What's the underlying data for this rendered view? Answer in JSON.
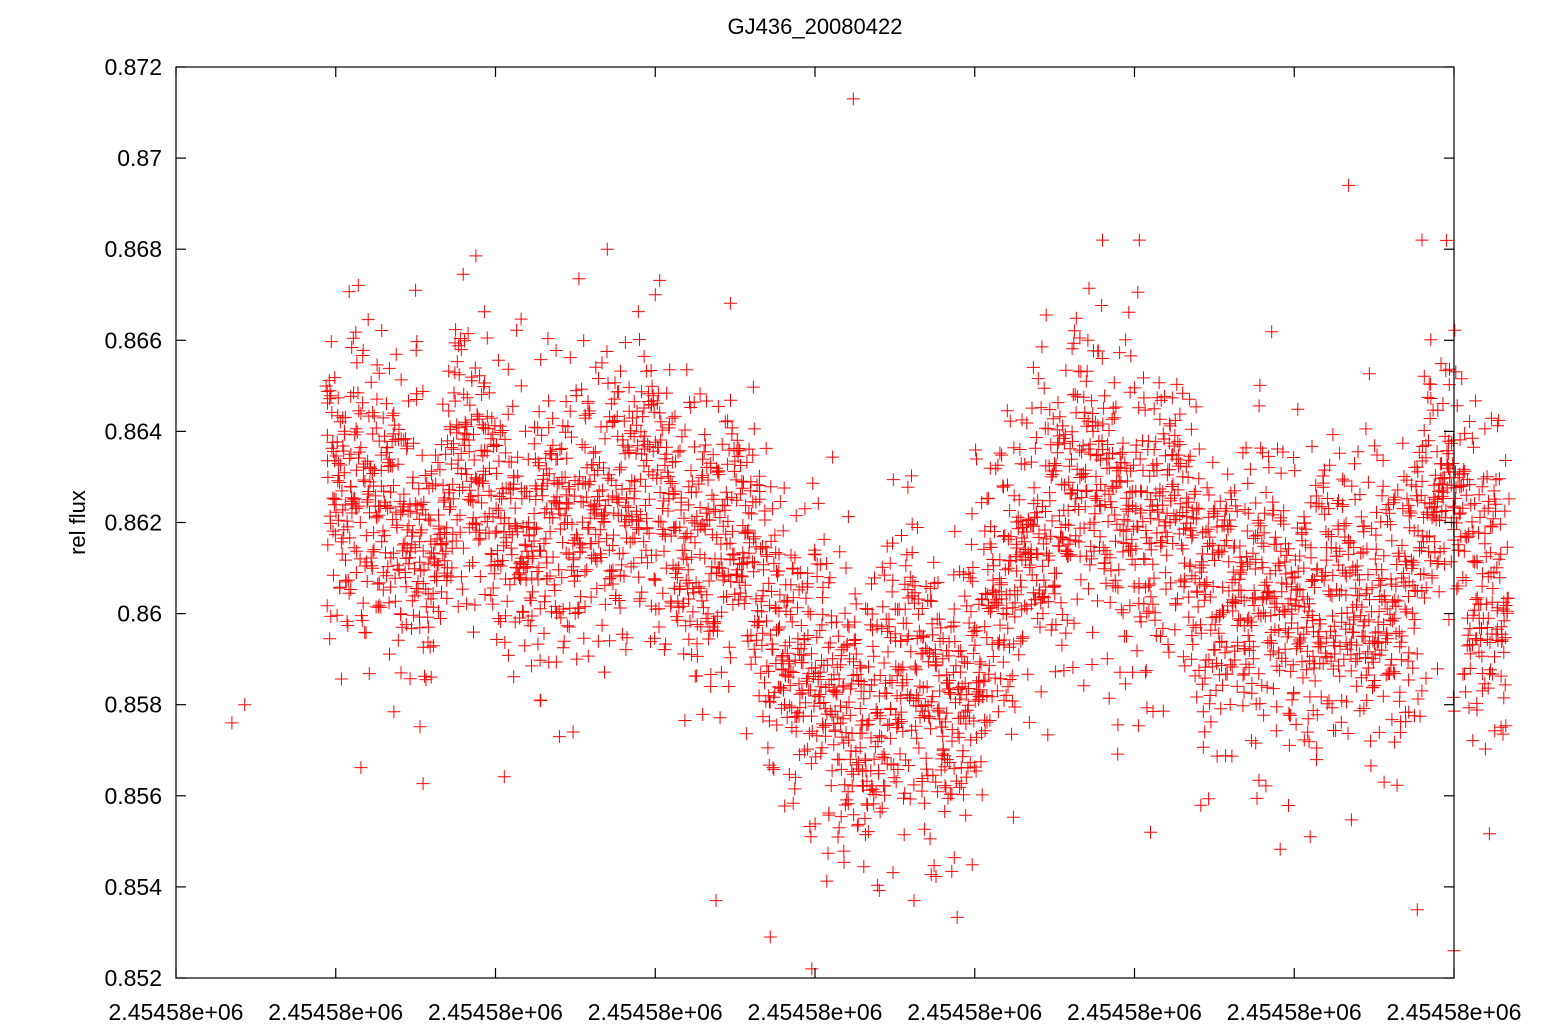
{
  "chart_data": {
    "type": "scatter",
    "title": "GJ436_20080422",
    "ylabel": "rel flux",
    "xlabel": "",
    "marker": "plus",
    "grid": false,
    "legend": "none",
    "series_color": "#ff0000",
    "xlim": [
      0,
      8
    ],
    "ylim": [
      0.852,
      0.872
    ],
    "x_tick_values": [
      0,
      1,
      2,
      3,
      4,
      5,
      6,
      7,
      8
    ],
    "x_tick_labels": [
      "2.45458e+06",
      "2.45458e+06",
      "2.45458e+06",
      "2.45458e+06",
      "2.45458e+06",
      "2.45458e+06",
      "2.45458e+06",
      "2.45458e+06",
      "2.45458e+06"
    ],
    "y_ticks": [
      0.852,
      0.854,
      0.856,
      0.858,
      0.86,
      0.862,
      0.864,
      0.866,
      0.868,
      0.87,
      0.872
    ],
    "y_tick_labels": [
      "0.852",
      "0.854",
      "0.856",
      "0.858",
      "0.86",
      "0.862",
      "0.864",
      "0.866",
      "0.868",
      "0.87",
      "0.872"
    ],
    "series": [
      {
        "trend_x": [
          0.94,
          1.5,
          2.0,
          2.5,
          3.0,
          3.2,
          3.4,
          3.6,
          3.8,
          4.0,
          4.2,
          4.4,
          4.6,
          4.8,
          5.0,
          5.2,
          5.4,
          5.6,
          5.8,
          6.0,
          6.2,
          6.4,
          6.6,
          6.8,
          7.0,
          7.2,
          7.4,
          7.6,
          7.8,
          8.0,
          8.2,
          8.34
        ],
        "trend_y": [
          0.8626,
          0.8624,
          0.8623,
          0.8622,
          0.8624,
          0.8623,
          0.8618,
          0.8608,
          0.8596,
          0.8585,
          0.8578,
          0.8576,
          0.858,
          0.8585,
          0.8592,
          0.8605,
          0.8618,
          0.8627,
          0.863,
          0.8624,
          0.8614,
          0.8608,
          0.8605,
          0.8604,
          0.8602,
          0.8601,
          0.8603,
          0.8608,
          0.8618,
          0.862,
          0.8608,
          0.861
        ],
        "scatter_std": 0.0017,
        "point_count": 3600,
        "outliers": [
          {
            "x": 4.24,
            "y": 0.8713
          },
          {
            "x": 2.7,
            "y": 0.868
          },
          {
            "x": 3.0,
            "y": 0.867
          },
          {
            "x": 1.5,
            "y": 0.8671
          },
          {
            "x": 5.8,
            "y": 0.8682
          },
          {
            "x": 6.03,
            "y": 0.8682
          },
          {
            "x": 7.34,
            "y": 0.8694
          },
          {
            "x": 7.8,
            "y": 0.8682
          },
          {
            "x": 3.72,
            "y": 0.8529
          },
          {
            "x": 3.98,
            "y": 0.8522
          },
          {
            "x": 8.0,
            "y": 0.8526
          },
          {
            "x": 7.77,
            "y": 0.8535
          },
          {
            "x": 0.35,
            "y": 0.8576
          },
          {
            "x": 0.43,
            "y": 0.858
          },
          {
            "x": 2.28,
            "y": 0.8581
          },
          {
            "x": 2.4,
            "y": 0.8573
          },
          {
            "x": 3.38,
            "y": 0.8537
          },
          {
            "x": 4.62,
            "y": 0.8537
          },
          {
            "x": 6.1,
            "y": 0.8552
          },
          {
            "x": 7.1,
            "y": 0.8551
          }
        ]
      }
    ]
  }
}
